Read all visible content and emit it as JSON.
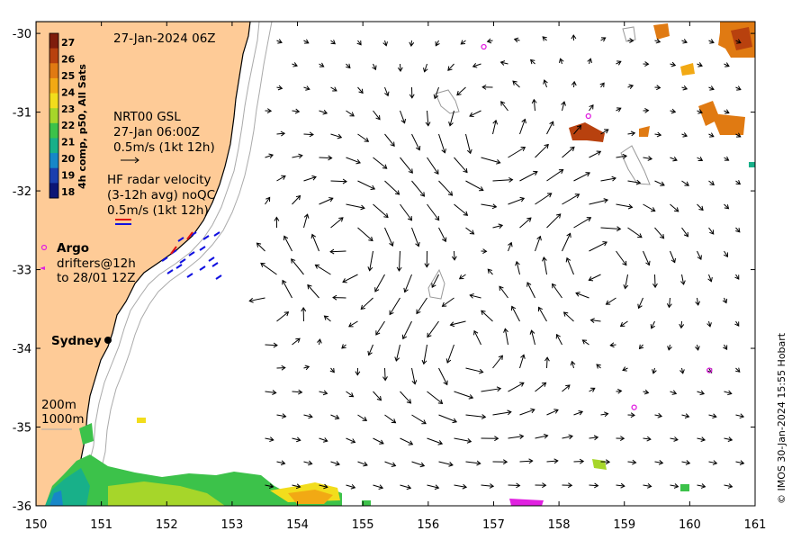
{
  "header": {
    "datetime": "27-Jan-2024 06Z"
  },
  "colorbar": {
    "label": "4h comp, p50, All Sats",
    "ticks": [
      "27",
      "26",
      "25",
      "24",
      "23",
      "22",
      "21",
      "20",
      "19",
      "18"
    ],
    "colors": [
      "#7f1d0c",
      "#b8410e",
      "#e07a12",
      "#f2a914",
      "#f2dd1c",
      "#a6d62a",
      "#3cc24a",
      "#18b089",
      "#1787c8",
      "#1b3fae",
      "#0c1676"
    ]
  },
  "legend_gsl": {
    "line1": "NRT00 GSL",
    "line2": "27-Jan 06:00Z",
    "line3": "0.5m/s (1kt 12h)"
  },
  "legend_radar": {
    "line1": "HF radar velocity",
    "line2": "(3-12h avg) noQC",
    "line3": "0.5m/s (1kt 12h)"
  },
  "legend_argo": {
    "title": "Argo",
    "line1": "drifters@12h",
    "line2": "to 28/01 12Z"
  },
  "city": "Sydney",
  "isobaths": {
    "shallow": "200m",
    "deep": "1000m"
  },
  "credit": "© IMOS 30-Jan-2024 15:55 Hobart",
  "axes": {
    "x_ticks": [
      "150",
      "151",
      "152",
      "153",
      "154",
      "155",
      "156",
      "157",
      "158",
      "159",
      "160",
      "161"
    ],
    "y_ticks": [
      "-30",
      "-31",
      "-32",
      "-33",
      "-34",
      "-35",
      "-36"
    ],
    "lon_range": [
      150,
      161
    ],
    "lat_range": [
      -36,
      -29.85
    ]
  },
  "argo_floats": [
    {
      "lon": 156.85,
      "lat": -30.17
    },
    {
      "lon": 158.45,
      "lat": -31.05
    },
    {
      "lon": 160.3,
      "lat": -34.28
    },
    {
      "lon": 159.15,
      "lat": -34.75
    }
  ],
  "colors": {
    "land": "#fecb97",
    "coast": "#000000",
    "isobath": "#aaaaaa",
    "argo": "#e020e0",
    "radar_blue": "#1010e0",
    "radar_red": "#e01010"
  }
}
